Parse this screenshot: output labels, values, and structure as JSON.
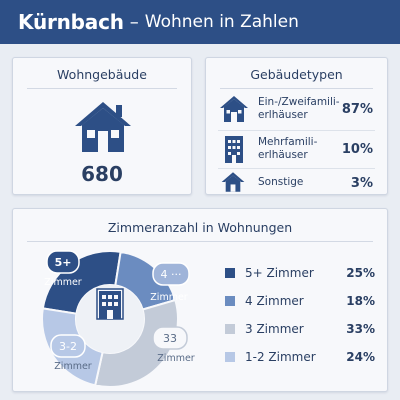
{
  "header": {
    "title": "Kürnbach",
    "separator": "–",
    "subtitle": "Wohnen in Zahlen",
    "bg_color": "#2d4f86"
  },
  "wohngebaeude": {
    "title": "Wohngebäude",
    "value": "680",
    "icon": "house-icon"
  },
  "gebaeudetypen": {
    "title": "Gebäudetypen",
    "items": [
      {
        "label_line1": "Ein-/Zweifamili-",
        "label_line2": "erlhäuser",
        "percent": "87%",
        "icon": "house-icon"
      },
      {
        "label_line1": "Mehrfamili-",
        "label_line2": "erlhäuser",
        "percent": "10%",
        "icon": "apartment-building-icon"
      },
      {
        "label_line1": "Sonstige",
        "label_line2": "",
        "percent": "3%",
        "icon": "small-house-icon"
      }
    ]
  },
  "zimmer": {
    "title": "Zimmeranzahl in Wohnungen",
    "center_icon": "apartment-building-icon",
    "donut_labels": [
      {
        "top": "5+",
        "bottom": "Zimmer"
      },
      {
        "top": "4 ···",
        "bottom": "Zimmer"
      },
      {
        "top": "33",
        "bottom": "Zimmer"
      },
      {
        "top": "3-2",
        "bottom": "Zimmer"
      }
    ],
    "legend": [
      {
        "label": "5+ Zimmer",
        "percent": "25%",
        "color": "#2d4f86"
      },
      {
        "label": "4 Zimmer",
        "percent": "18%",
        "color": "#6b8cc0"
      },
      {
        "label": "3 Zimmer",
        "percent": "33%",
        "color": "#c3cbd8"
      },
      {
        "label": "1-2 Zimmer",
        "percent": "24%",
        "color": "#b7c8e6"
      }
    ]
  },
  "chart_data": {
    "type": "pie",
    "title": "Zimmeranzahl in Wohnungen",
    "categories": [
      "5+ Zimmer",
      "4 Zimmer",
      "3 Zimmer",
      "1-2 Zimmer"
    ],
    "values": [
      25,
      18,
      33,
      24
    ],
    "colors": [
      "#2d4f86",
      "#6b8cc0",
      "#c3cbd8",
      "#b7c8e6"
    ]
  }
}
